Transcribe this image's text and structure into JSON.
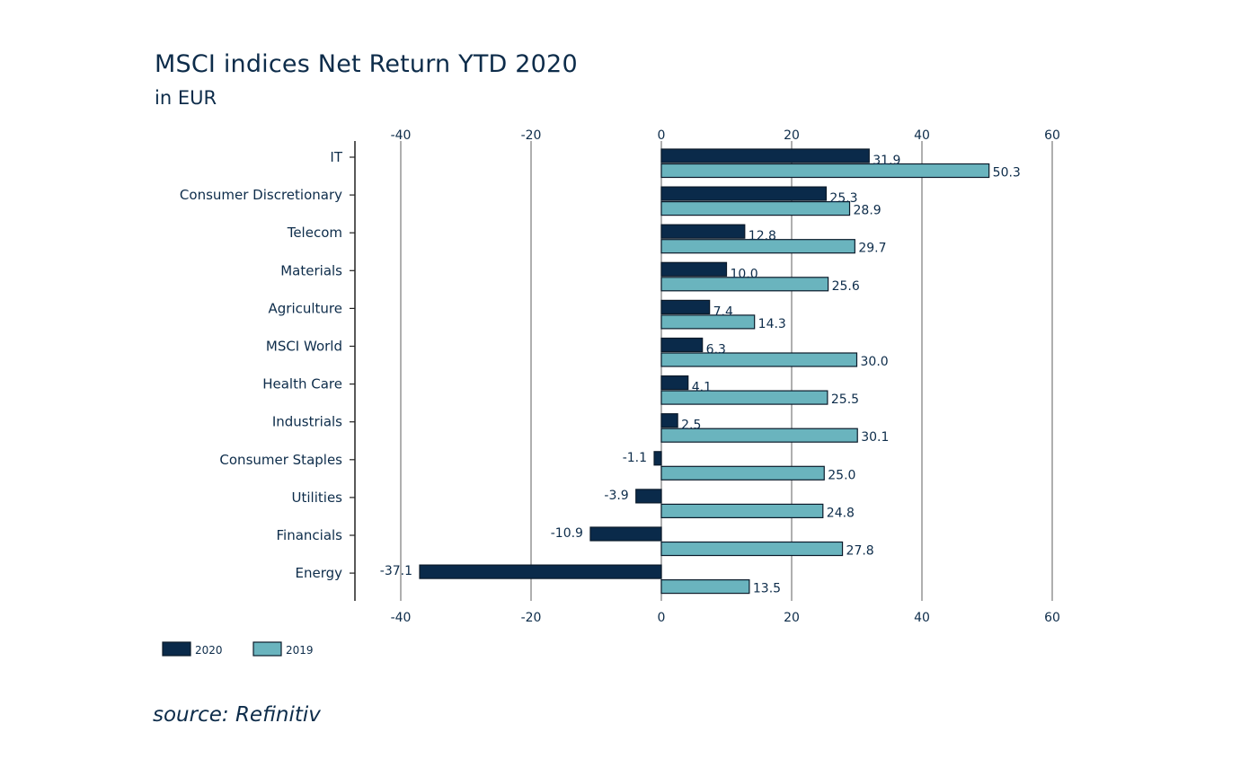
{
  "title": "MSCI indices Net Return YTD 2020",
  "subtitle": "in EUR",
  "source": "source: Refinitiv",
  "colors": {
    "series_2020": "#0a2a4a",
    "series_2019": "#6ab4be",
    "grid": "#7a7a7a",
    "text": "#0d2c4a"
  },
  "chart_data": {
    "type": "bar",
    "orientation": "horizontal",
    "title": "MSCI indices Net Return YTD 2020",
    "subtitle": "in EUR",
    "categories": [
      "IT",
      "Consumer Discretionary",
      "Telecom",
      "Materials",
      "Agriculture",
      "MSCI World",
      "Health Care",
      "Industrials",
      "Consumer Staples",
      "Utilities",
      "Financials",
      "Energy"
    ],
    "series": [
      {
        "name": "2020",
        "values": [
          31.9,
          25.3,
          12.8,
          10.0,
          7.4,
          6.3,
          4.1,
          2.5,
          -1.1,
          -3.9,
          -10.9,
          -37.1
        ]
      },
      {
        "name": "2019",
        "values": [
          50.3,
          28.9,
          29.7,
          25.6,
          14.3,
          30.0,
          25.5,
          30.1,
          25.0,
          24.8,
          27.8,
          13.5
        ]
      }
    ],
    "xlim": [
      -47,
      60
    ],
    "xticks": [
      -40,
      -20,
      0,
      20,
      40,
      60
    ],
    "grid": true,
    "axis_labels_top_and_bottom": true,
    "legend_position": "bottom-left",
    "legend": [
      "2020",
      "2019"
    ]
  }
}
